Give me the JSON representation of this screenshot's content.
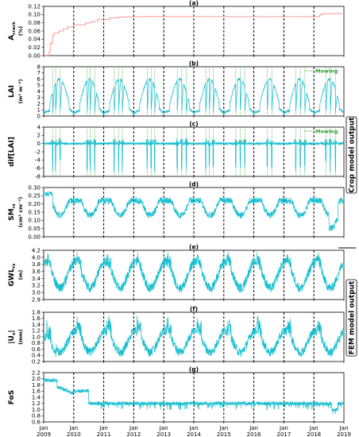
{
  "chart_data": {
    "type": "line",
    "x_axis": {
      "ticks": [
        "Jan 2009",
        "Jan 2010",
        "Jan 2011",
        "Jan 2012",
        "Jan 2013",
        "Jan 2014",
        "Jan 2015",
        "Jan 2016",
        "Jan 2017",
        "Jan 2018",
        "Jan 2019"
      ],
      "range": [
        2009,
        2019
      ]
    },
    "colors": {
      "series": "#17becf",
      "crack": "#ff5555",
      "mowing": "#2ca02c",
      "year_lines": "#000000"
    },
    "group_labels": {
      "crop": "Crop model output",
      "fem": "FEM model output"
    },
    "mowing_legend": "Mowing",
    "mowing_years": [
      2009.3,
      2009.4,
      2009.55,
      2010.45,
      2010.55,
      2010.7,
      2011.35,
      2011.5,
      2011.62,
      2012.45,
      2012.58,
      2012.7,
      2013.45,
      2013.6,
      2013.75,
      2014.4,
      2014.52,
      2014.65,
      2015.4,
      2015.55,
      2015.7,
      2016.45,
      2016.6,
      2017.4,
      2017.55,
      2017.7,
      2018.4,
      2018.55,
      2018.72
    ],
    "panels": [
      {
        "id": "a",
        "label": "(a)",
        "ylabel": "A",
        "ysub": "crack",
        "yunit": "(%)",
        "ylim": [
          0,
          0.12
        ],
        "yticks": [
          "0.00",
          "0.02",
          "0.04",
          "0.06",
          "0.08",
          "0.10",
          "0.12"
        ],
        "series": {
          "kind": "step",
          "x": [
            2009.0,
            2009.18,
            2009.22,
            2009.3,
            2009.35,
            2009.5,
            2009.65,
            2009.8,
            2010.0,
            2010.4,
            2010.6,
            2010.8,
            2011.2,
            2011.5,
            2012.0,
            2014.0,
            2016.0,
            2018.2,
            2018.3,
            2019.0
          ],
          "y": [
            0.0,
            0.01,
            0.03,
            0.05,
            0.055,
            0.06,
            0.065,
            0.07,
            0.075,
            0.08,
            0.083,
            0.088,
            0.092,
            0.094,
            0.095,
            0.095,
            0.095,
            0.1,
            0.102,
            0.102
          ]
        }
      },
      {
        "id": "b",
        "label": "(b)",
        "ylabel": "LAI",
        "ysub": "",
        "yunit": "(m² m⁻²)",
        "ylim": [
          0,
          8
        ],
        "yticks": [
          "0",
          "1",
          "2",
          "3",
          "4",
          "5",
          "6",
          "7",
          "8"
        ],
        "legend": true,
        "series": {
          "kind": "lai"
        }
      },
      {
        "id": "c",
        "label": "(c)",
        "ylabel": "dif[LAI]",
        "ysub": "",
        "yunit": "",
        "ylim": [
          -8,
          4
        ],
        "yticks": [
          "-8",
          "-6",
          "-4",
          "-2",
          "0",
          "2",
          "4"
        ],
        "legend": true,
        "series": {
          "kind": "dlai"
        }
      },
      {
        "id": "d",
        "label": "(d)",
        "ylabel": "SM",
        "ysub": "rz",
        "yunit": "(cm³ cm⁻³)",
        "ylim": [
          0,
          0.3
        ],
        "yticks": [
          "0.00",
          "0.05",
          "0.10",
          "0.15",
          "0.20",
          "0.25",
          "0.30"
        ],
        "series": {
          "kind": "sm"
        }
      },
      {
        "id": "e",
        "label": "(e)",
        "ylabel": "GWL",
        "ysub": "rz",
        "yunit": "(m)",
        "ylim": [
          2.9,
          4.2
        ],
        "yticks": [
          "2.9",
          "3.0",
          "3.2",
          "3.4",
          "3.6",
          "3.8",
          "4.0",
          "4.2"
        ],
        "series": {
          "kind": "gwl"
        }
      },
      {
        "id": "f",
        "label": "(f)",
        "ylabel": "|U",
        "ysub": "x",
        "ysuffix": "|",
        "yunit": "(mm)",
        "ylim": [
          0.2,
          1.8
        ],
        "yticks": [
          "0.2",
          "0.4",
          "0.6",
          "0.8",
          "1.0",
          "1.2",
          "1.4",
          "1.6",
          "1.8"
        ],
        "series": {
          "kind": "ux"
        }
      },
      {
        "id": "g",
        "label": "(g)",
        "ylabel": "FoS",
        "ysub": "",
        "yunit": "",
        "ylim": [
          0.6,
          2.2
        ],
        "yticks": [
          "0.6",
          "0.8",
          "1.0",
          "1.2",
          "1.4",
          "1.6",
          "1.8",
          "2.0",
          "2.2"
        ],
        "series": {
          "kind": "fos"
        }
      }
    ]
  }
}
